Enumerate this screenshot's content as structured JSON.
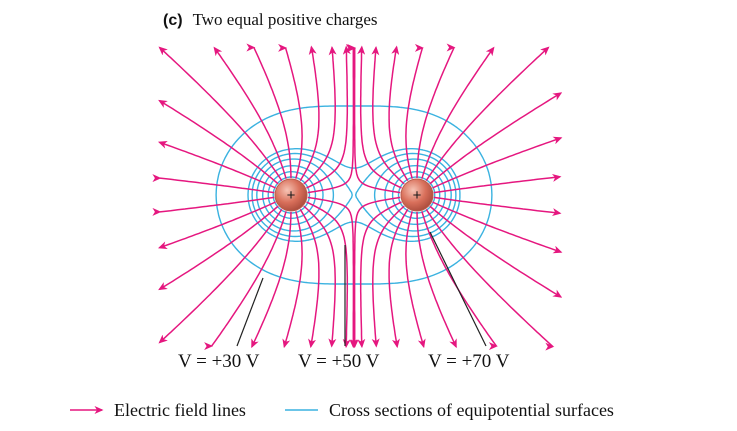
{
  "figure": {
    "caption_letter": "(c)",
    "caption_text": "Two equal positive charges",
    "charges": [
      {
        "sign": "+"
      },
      {
        "sign": "+"
      }
    ],
    "voltage_labels": [
      "V = +30 V",
      "V = +50 V",
      "V = +70 V"
    ]
  },
  "legend": {
    "field_label": "Electric field lines",
    "equipotential_label": "Cross sections of equipotential surfaces"
  },
  "colors": {
    "field_line": "#e5177f",
    "equipotential": "#3ab2e0",
    "charge_fill": "#d9705b",
    "charge_highlight": "#f6c4b5",
    "text": "#111111",
    "leader_line": "#222222"
  }
}
